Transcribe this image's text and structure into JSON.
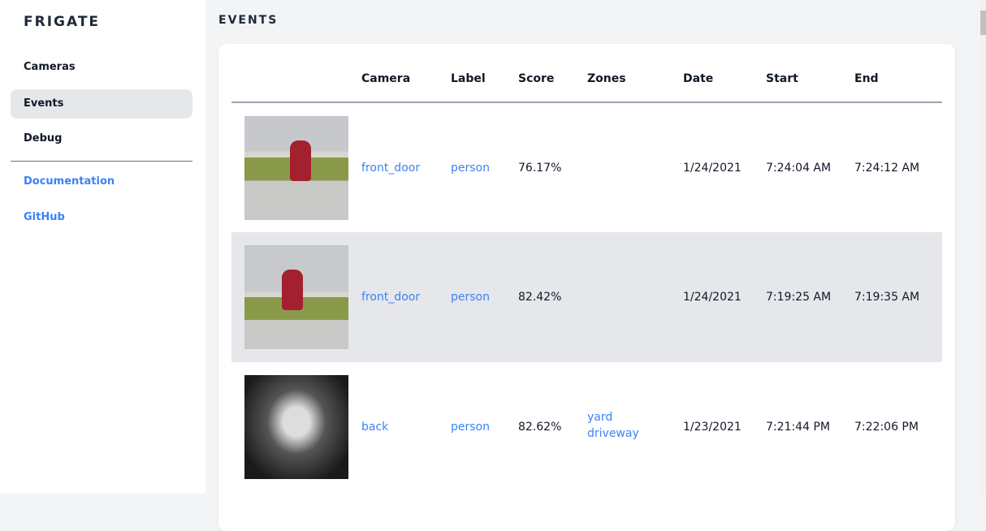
{
  "sidebar": {
    "brand": "FRIGATE",
    "items": [
      {
        "label": "Cameras"
      },
      {
        "label": "Events",
        "active": true
      },
      {
        "label": "Debug"
      }
    ],
    "links": [
      {
        "label": "Documentation"
      },
      {
        "label": "GitHub"
      }
    ]
  },
  "page": {
    "title": "EVENTS"
  },
  "table": {
    "headers": [
      "",
      "Camera",
      "Label",
      "Score",
      "Zones",
      "Date",
      "Start",
      "End"
    ],
    "rows": [
      {
        "camera": "front_door",
        "label": "person",
        "score": "76.17%",
        "zones": [
          "",
          ""
        ],
        "date": "1/24/2021",
        "start": "7:24:04 AM",
        "end": "7:24:12 AM"
      },
      {
        "camera": "front_door",
        "label": "person",
        "score": "82.42%",
        "zones": [
          "",
          ""
        ],
        "date": "1/24/2021",
        "start": "7:19:25 AM",
        "end": "7:19:35 AM"
      },
      {
        "camera": "back",
        "label": "person",
        "score": "82.62%",
        "zones": [
          "yard",
          "driveway"
        ],
        "date": "1/23/2021",
        "start": "7:21:44 PM",
        "end": "7:22:06 PM"
      }
    ]
  },
  "colors": {
    "link": "#3b82f6",
    "active_nav": "#e5e7eb",
    "background": "#f3f4f6"
  }
}
